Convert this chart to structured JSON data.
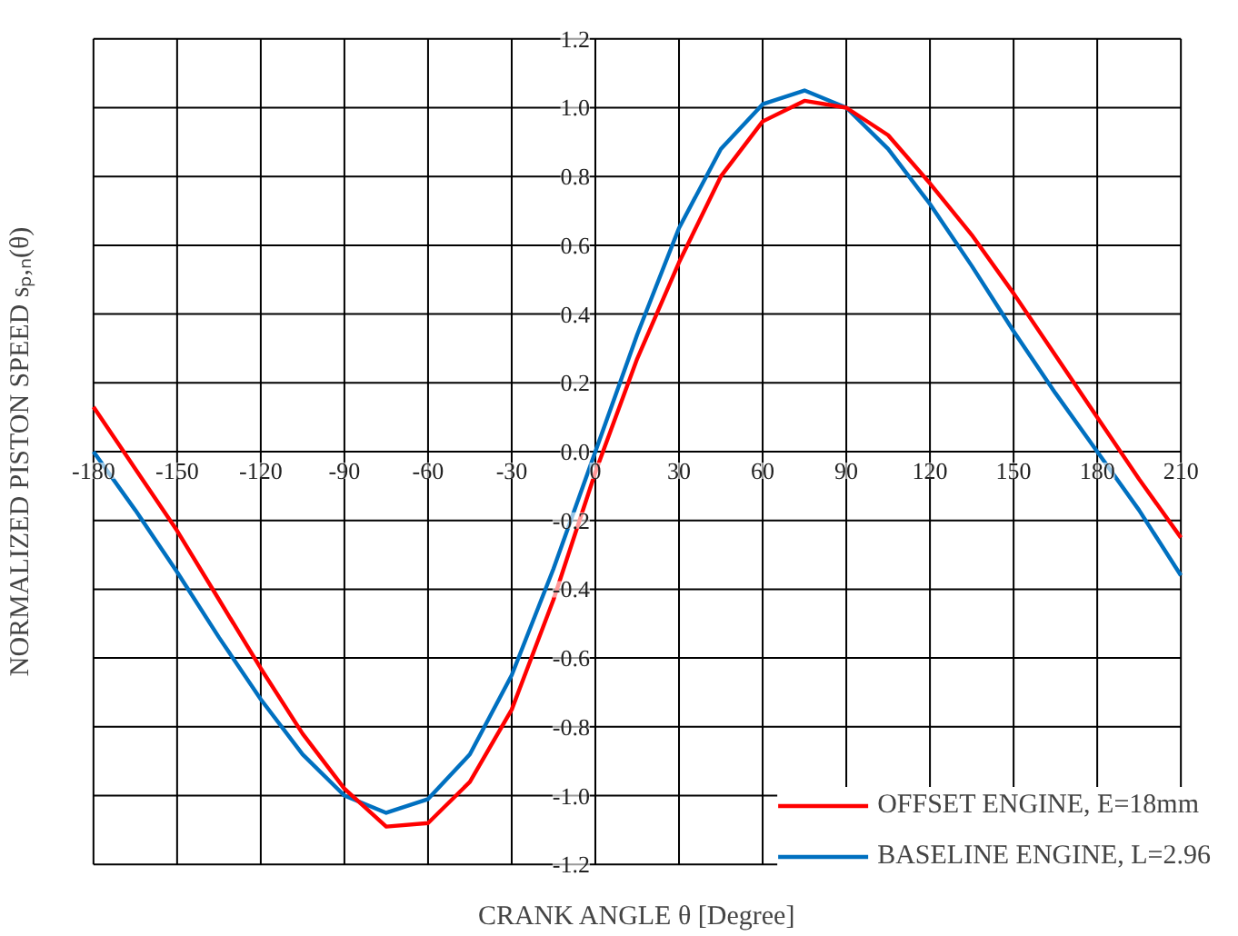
{
  "chart_data": {
    "type": "line",
    "xlabel": "CRANK ANGLE θ [Degree]",
    "ylabel": "NORMALIZED PISTON SPEED sₚ,ₙ(θ)",
    "x": [
      -180,
      -165,
      -150,
      -135,
      -120,
      -105,
      -90,
      -75,
      -60,
      -45,
      -30,
      -15,
      0,
      15,
      30,
      45,
      60,
      75,
      90,
      105,
      120,
      135,
      150,
      165,
      180,
      195,
      210
    ],
    "series": [
      {
        "name": "OFFSET ENGINE, E=18mm",
        "color": "#ff0000",
        "values": [
          0.13,
          -0.05,
          -0.23,
          -0.43,
          -0.63,
          -0.82,
          -0.98,
          -1.09,
          -1.08,
          -0.96,
          -0.75,
          -0.43,
          -0.06,
          0.27,
          0.55,
          0.8,
          0.96,
          1.02,
          1.0,
          0.92,
          0.78,
          0.63,
          0.46,
          0.28,
          0.1,
          -0.08,
          -0.25
        ]
      },
      {
        "name": "BASELINE ENGINE, L=2.96",
        "color": "#0070c0",
        "values": [
          0.0,
          -0.17,
          -0.35,
          -0.54,
          -0.72,
          -0.88,
          -1.0,
          -1.05,
          -1.01,
          -0.88,
          -0.65,
          -0.34,
          0.0,
          0.34,
          0.65,
          0.88,
          1.01,
          1.05,
          1.0,
          0.88,
          0.72,
          0.54,
          0.35,
          0.17,
          0.0,
          -0.17,
          -0.36
        ]
      }
    ],
    "xlim": [
      -180,
      210
    ],
    "ylim": [
      -1.2,
      1.2
    ],
    "xticks": [
      -180,
      -150,
      -120,
      -90,
      -60,
      -30,
      0,
      30,
      60,
      90,
      120,
      150,
      180,
      210
    ],
    "yticks": [
      {
        "value": -1.2,
        "label": "-1.2"
      },
      {
        "value": -1.0,
        "label": "-1.0"
      },
      {
        "value": -0.8,
        "label": "-0.8"
      },
      {
        "value": -0.6,
        "label": "-0.6"
      },
      {
        "value": -0.4,
        "label": "-0.4"
      },
      {
        "value": -0.2,
        "label": "-0.2"
      },
      {
        "value": 0,
        "label": "0.0"
      },
      {
        "value": 0.2,
        "label": "0.2"
      },
      {
        "value": 0.4,
        "label": "0.4"
      },
      {
        "value": 0.6,
        "label": "0.6"
      },
      {
        "value": 0.8,
        "label": "0.8"
      },
      {
        "value": 1.0,
        "label": "1.0"
      },
      {
        "value": 1.2,
        "label": "1.2"
      }
    ],
    "grid": true,
    "legend": "bottom right",
    "marker": "none",
    "line_style": "solid"
  }
}
